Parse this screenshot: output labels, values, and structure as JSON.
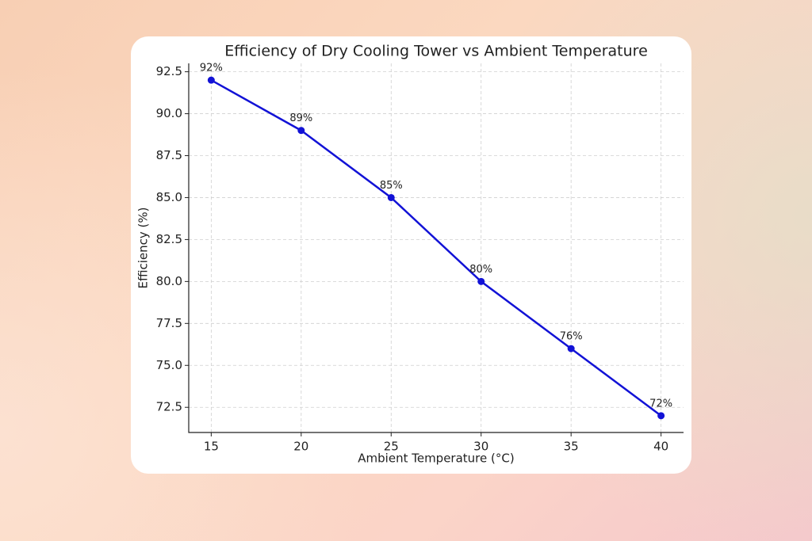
{
  "chart_data": {
    "type": "line",
    "title": "Efficiency of Dry Cooling Tower vs Ambient Temperature",
    "xlabel": "Ambient Temperature (°C)",
    "ylabel": "Efficiency (%)",
    "x": [
      15,
      20,
      25,
      30,
      35,
      40
    ],
    "values": [
      92,
      89,
      85,
      80,
      76,
      72
    ],
    "value_labels": [
      "92%",
      "89%",
      "85%",
      "80%",
      "76%",
      "72%"
    ],
    "color": "#1212d6",
    "xlim": [
      13.75,
      41.25
    ],
    "xticks": [
      15,
      20,
      25,
      30,
      35,
      40
    ],
    "ylim": [
      71,
      93
    ],
    "yticks": [
      72.5,
      {
        "value": 75,
        "label": "75.0"
      },
      77.5,
      {
        "value": 80,
        "label": "80.0"
      },
      82.5,
      {
        "value": 85,
        "label": "85.0"
      },
      87.5,
      {
        "value": 90,
        "label": "90.0"
      },
      92.5
    ],
    "grid": true
  }
}
